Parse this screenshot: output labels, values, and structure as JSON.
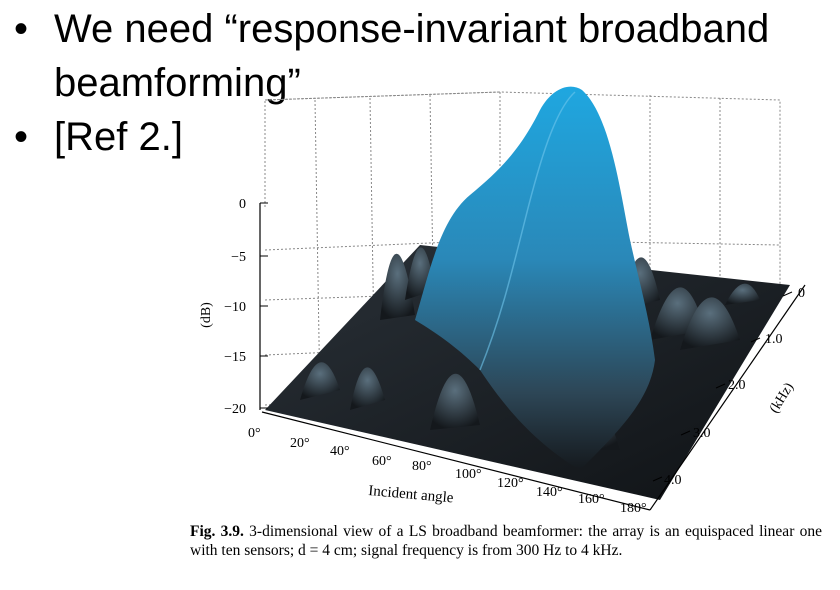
{
  "slide": {
    "bullets": [
      {
        "text": "We need “response-invariant broadband beamforming”"
      },
      {
        "text": "[Ref 2.]"
      }
    ]
  },
  "figure": {
    "z_axis": {
      "label": "(dB)",
      "ticks": [
        "0",
        "−5",
        "−10",
        "−15",
        "−20"
      ]
    },
    "x_axis": {
      "label": "Incident angle",
      "ticks": [
        "0°",
        "20°",
        "40°",
        "60°",
        "80°",
        "100°",
        "120°",
        "140°",
        "160°",
        "180°"
      ]
    },
    "y_axis": {
      "label": "(kHz)",
      "ticks": [
        "0",
        "1.0",
        "2.0",
        "3.0",
        "4.0"
      ]
    },
    "colors": {
      "surface_dark": "#15191d",
      "surface_mid": "#3d5566",
      "surface_peak": "#1fa7e0",
      "grid": "#888888"
    },
    "caption": {
      "label": "Fig. 3.9.",
      "text": " 3-dimensional view of a LS broadband beamformer: the array is an equispaced linear one with ten sensors; d = 4 cm; signal frequency is from 300 Hz to 4 kHz."
    }
  }
}
